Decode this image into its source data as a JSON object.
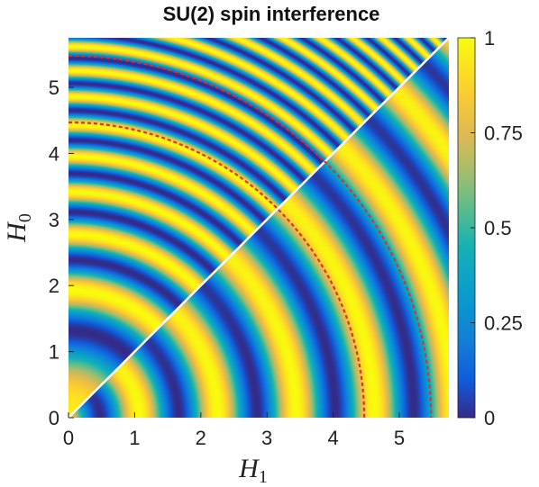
{
  "chart_data": {
    "type": "heatmap",
    "title": "SU(2) spin interference",
    "xlabel": {
      "symbol": "H",
      "sub": "1"
    },
    "ylabel": {
      "symbol": "H",
      "sub": "0"
    },
    "xlim": [
      0,
      5.75
    ],
    "ylim": [
      0,
      5.75
    ],
    "x_ticks": [
      "0",
      "1",
      "2",
      "3",
      "4",
      "5"
    ],
    "y_ticks": [
      "0",
      "1",
      "2",
      "3",
      "4",
      "5"
    ],
    "colorbar": {
      "range": [
        0,
        1
      ],
      "ticks": [
        "0",
        "0.25",
        "0.5",
        "0.75",
        "1"
      ],
      "colormap": "parula"
    },
    "diagonal_line": {
      "from": [
        0,
        0
      ],
      "to": [
        5.75,
        5.75
      ],
      "color": "#ffffff"
    },
    "dashed_arcs": [
      {
        "radius": 4.47,
        "color": "#e0302a"
      },
      {
        "radius": 5.48,
        "color": "#e0302a"
      }
    ]
  }
}
